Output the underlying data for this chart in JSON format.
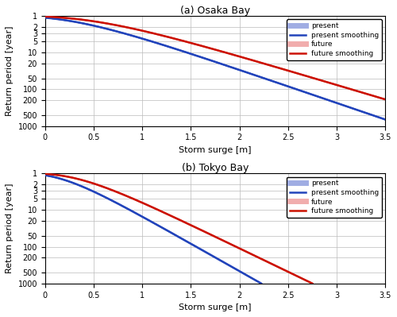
{
  "title_a": "(a) Osaka Bay",
  "title_b": "(b) Tokyo Bay",
  "xlabel": "Storm surge [m]",
  "ylabel": "Return period [year]",
  "xlim": [
    0,
    3.5
  ],
  "ylim_top": 1,
  "ylim_bottom": 1000,
  "yticks": [
    1,
    2,
    3,
    5,
    10,
    20,
    50,
    100,
    200,
    500,
    1000
  ],
  "xticks": [
    0,
    0.5,
    1,
    1.5,
    2,
    2.5,
    3,
    3.5
  ],
  "present_color": "#8899dd",
  "present_smooth_color": "#2244bb",
  "future_color": "#ee9999",
  "future_smooth_color": "#cc1100",
  "legend_labels": [
    "present",
    "present smoothing",
    "future",
    "future smoothing"
  ],
  "background_color": "#ffffff",
  "grid_color": "#bbbbbb",
  "osaka_present_mu": 0.38,
  "osaka_present_beta": 0.48,
  "osaka_future_mu": 0.62,
  "osaka_future_beta": 0.55,
  "tokyo_present_mu": 0.22,
  "tokyo_present_beta": 0.29,
  "tokyo_future_mu": 0.4,
  "tokyo_future_beta": 0.34
}
